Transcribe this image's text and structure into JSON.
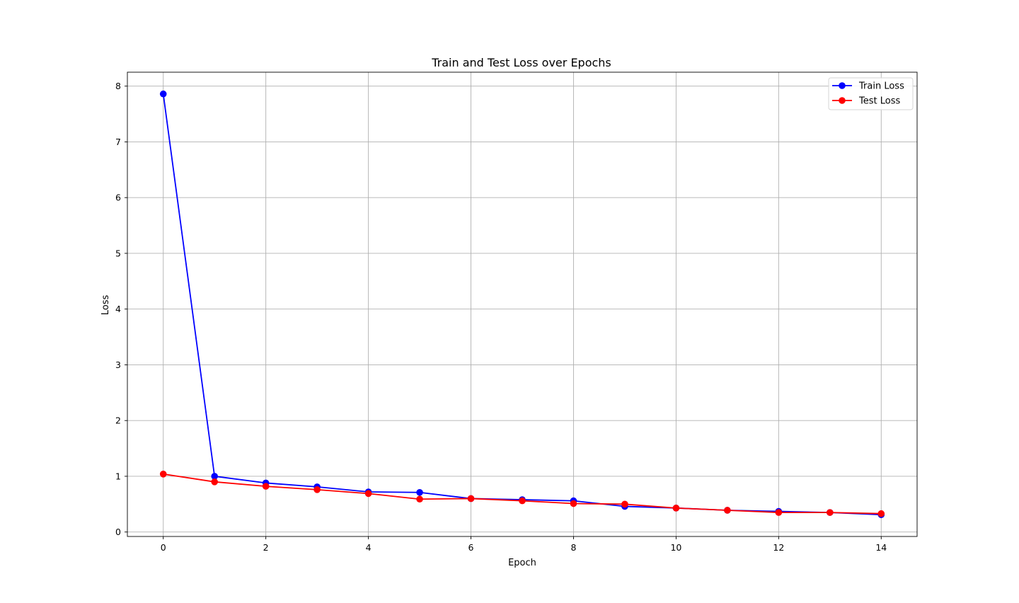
{
  "chart_data": {
    "type": "line",
    "title": "Train and Test Loss over Epochs",
    "xlabel": "Epoch",
    "ylabel": "Loss",
    "xlim": [
      -0.7,
      14.7
    ],
    "ylim": [
      -0.08,
      8.25
    ],
    "xticks": [
      0,
      2,
      4,
      6,
      8,
      10,
      12,
      14
    ],
    "yticks": [
      0,
      1,
      2,
      3,
      4,
      5,
      6,
      7,
      8
    ],
    "grid": true,
    "legend_position": "top-right",
    "x": [
      0,
      1,
      2,
      3,
      4,
      5,
      6,
      7,
      8,
      9,
      10,
      11,
      12,
      13,
      14
    ],
    "series": [
      {
        "name": "Train Loss",
        "color": "#0000ff",
        "marker": "circle",
        "values": [
          7.86,
          1.0,
          0.88,
          0.81,
          0.72,
          0.71,
          0.6,
          0.58,
          0.56,
          0.46,
          0.43,
          0.39,
          0.37,
          0.35,
          0.31
        ]
      },
      {
        "name": "Test Loss",
        "color": "#ff0000",
        "marker": "circle",
        "values": [
          1.04,
          0.9,
          0.82,
          0.76,
          0.69,
          0.59,
          0.6,
          0.56,
          0.51,
          0.5,
          0.43,
          0.39,
          0.35,
          0.35,
          0.33
        ]
      }
    ]
  }
}
